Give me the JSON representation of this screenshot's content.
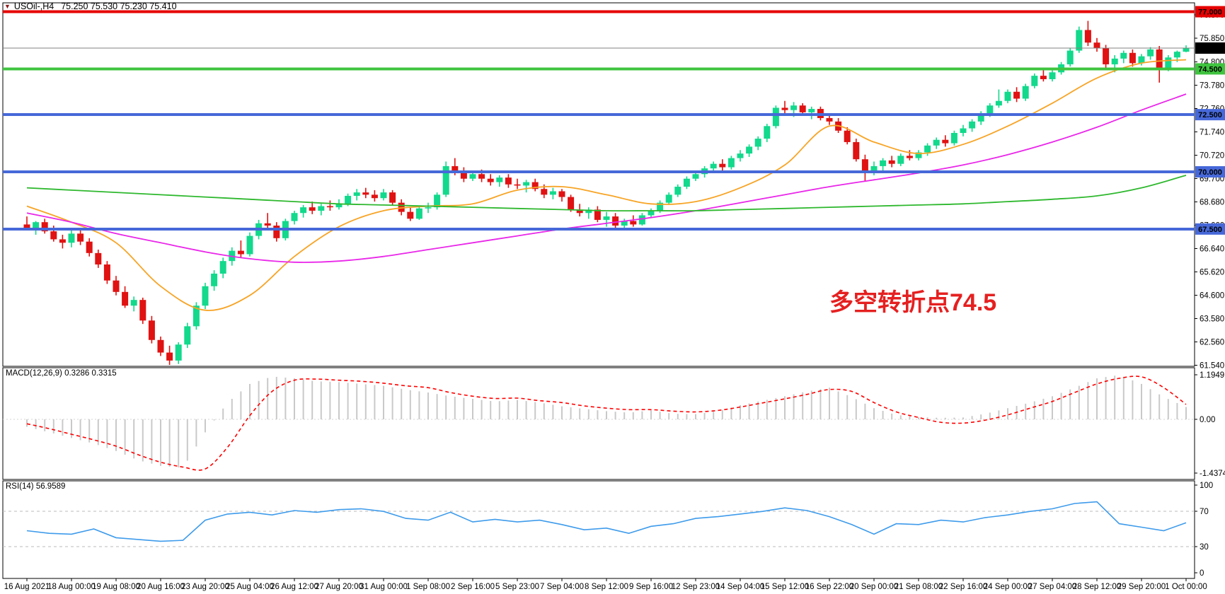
{
  "header": {
    "symbol_period": "USOil-,H4",
    "ohlc_text": "75.250 75.530 75.230 75.410",
    "dropdown_icon": "▼"
  },
  "indicators": {
    "macd_label": "MACD(12,26,9) 0.3286 0.3315",
    "rsi_label": "RSI(14) 56.9589"
  },
  "annotation": {
    "text": "多空转折点74.5",
    "color": "#e52020"
  },
  "colors": {
    "background": "#ffffff",
    "pane_border": "#000000",
    "bull": "#12d98c",
    "bear": "#e01212",
    "ma_orange": "#f7a425",
    "ma_magenta": "#e927e9",
    "ma_green": "#2eb82e",
    "hline_red": "#e60000",
    "hline_green": "#3fc43f",
    "hline_blue": "#4668d9",
    "current_price_line": "#808080",
    "current_price_badge": "#000000",
    "macd_bar": "#c9c9c9",
    "macd_signal": "#ff0000",
    "rsi_line": "#3e9beb",
    "rsi_level_dash": "#bbbbbb",
    "badge_text": "#ffffff"
  },
  "price_axis": {
    "ticks": [
      "76.870",
      "75.850",
      "74.800",
      "73.780",
      "72.760",
      "71.740",
      "70.720",
      "69.700",
      "68.680",
      "67.660",
      "66.640",
      "65.620",
      "64.600",
      "63.580",
      "62.560",
      "61.540"
    ],
    "current_price_label": "75.410"
  },
  "macd_axis": {
    "ticks": [
      "1.1949",
      "0.00",
      "-1.4374"
    ]
  },
  "rsi_axis": {
    "ticks": [
      "100",
      "70",
      "30",
      "0"
    ]
  },
  "chart_data": {
    "type": "candlestick+indicators",
    "symbol": "USOil",
    "timeframe": "H4",
    "title": "USOil-,H4 75.250 75.530 75.230 75.410",
    "last_bar": {
      "open": 75.25,
      "high": 75.53,
      "low": 75.23,
      "close": 75.41
    },
    "time_labels": [
      "16 Aug 2021",
      "18 Aug 00:00",
      "19 Aug 08:00",
      "20 Aug 16:00",
      "23 Aug 20:00",
      "25 Aug 04:00",
      "26 Aug 12:00",
      "27 Aug 20:00",
      "31 Aug 00:00",
      "1 Sep 08:00",
      "2 Sep 16:00",
      "5 Sep 23:00",
      "7 Sep 04:00",
      "8 Sep 12:00",
      "9 Sep 16:00",
      "12 Sep 23:00",
      "14 Sep 04:00",
      "15 Sep 12:00",
      "16 Sep 22:00",
      "20 Sep 00:00",
      "21 Sep 08:00",
      "22 Sep 16:00",
      "24 Sep 00:00",
      "27 Sep 04:00",
      "28 Sep 12:00",
      "29 Sep 20:00",
      "1 Oct 00:00"
    ],
    "candles_ohlc": [
      [
        67.7,
        68.05,
        67.45,
        67.55
      ],
      [
        67.55,
        67.85,
        67.25,
        67.8
      ],
      [
        67.8,
        67.95,
        67.3,
        67.4
      ],
      [
        67.4,
        67.65,
        66.95,
        67.05
      ],
      [
        67.05,
        67.25,
        66.65,
        66.9
      ],
      [
        66.9,
        67.45,
        66.7,
        67.3
      ],
      [
        67.3,
        67.5,
        66.8,
        66.95
      ],
      [
        66.95,
        67.1,
        66.3,
        66.45
      ],
      [
        66.45,
        66.6,
        65.8,
        65.95
      ],
      [
        65.95,
        66.1,
        65.1,
        65.25
      ],
      [
        65.25,
        65.45,
        64.6,
        64.75
      ],
      [
        64.75,
        65.0,
        64.05,
        64.15
      ],
      [
        64.15,
        64.55,
        63.9,
        64.4
      ],
      [
        64.4,
        64.5,
        63.35,
        63.5
      ],
      [
        63.5,
        63.7,
        62.5,
        62.65
      ],
      [
        62.65,
        62.8,
        61.95,
        62.1
      ],
      [
        62.1,
        62.4,
        61.56,
        61.75
      ],
      [
        61.75,
        62.55,
        61.6,
        62.45
      ],
      [
        62.45,
        63.4,
        62.3,
        63.25
      ],
      [
        63.25,
        64.3,
        63.1,
        64.15
      ],
      [
        64.15,
        65.15,
        64.0,
        65.0
      ],
      [
        65.0,
        65.7,
        64.8,
        65.55
      ],
      [
        65.55,
        66.25,
        65.35,
        66.1
      ],
      [
        66.1,
        66.7,
        65.9,
        66.55
      ],
      [
        66.55,
        67.0,
        66.25,
        66.4
      ],
      [
        66.4,
        67.35,
        66.3,
        67.2
      ],
      [
        67.2,
        67.9,
        67.05,
        67.75
      ],
      [
        67.75,
        68.2,
        67.5,
        67.65
      ],
      [
        67.65,
        67.8,
        66.95,
        67.1
      ],
      [
        67.1,
        67.95,
        67.0,
        67.85
      ],
      [
        67.85,
        68.3,
        67.7,
        68.2
      ],
      [
        68.2,
        68.55,
        68.0,
        68.45
      ],
      [
        68.45,
        68.7,
        68.15,
        68.3
      ],
      [
        68.3,
        68.6,
        68.1,
        68.5
      ],
      [
        68.5,
        68.75,
        68.3,
        68.45
      ],
      [
        68.45,
        68.8,
        68.35,
        68.6
      ],
      [
        68.6,
        69.05,
        68.5,
        68.95
      ],
      [
        68.95,
        69.25,
        68.75,
        69.1
      ],
      [
        69.1,
        69.3,
        68.85,
        69.0
      ],
      [
        69.0,
        69.2,
        68.7,
        68.85
      ],
      [
        68.85,
        69.25,
        68.75,
        69.1
      ],
      [
        69.1,
        69.2,
        68.55,
        68.65
      ],
      [
        68.65,
        68.8,
        68.1,
        68.25
      ],
      [
        68.25,
        68.45,
        67.85,
        67.95
      ],
      [
        67.95,
        68.5,
        67.9,
        68.4
      ],
      [
        68.4,
        68.65,
        68.2,
        68.45
      ],
      [
        68.45,
        69.1,
        68.35,
        69.0
      ],
      [
        69.0,
        70.45,
        68.9,
        70.25
      ],
      [
        70.25,
        70.6,
        69.85,
        70.0
      ],
      [
        70.0,
        70.2,
        69.55,
        69.7
      ],
      [
        69.7,
        70.05,
        69.6,
        69.9
      ],
      [
        69.9,
        70.1,
        69.55,
        69.7
      ],
      [
        69.7,
        69.9,
        69.4,
        69.55
      ],
      [
        69.55,
        69.85,
        69.35,
        69.75
      ],
      [
        69.75,
        69.9,
        69.3,
        69.45
      ],
      [
        69.45,
        69.7,
        69.25,
        69.4
      ],
      [
        69.4,
        69.65,
        69.1,
        69.55
      ],
      [
        69.55,
        69.7,
        69.15,
        69.25
      ],
      [
        69.25,
        69.45,
        68.85,
        69.0
      ],
      [
        69.0,
        69.3,
        68.8,
        69.15
      ],
      [
        69.15,
        69.25,
        68.7,
        68.9
      ],
      [
        68.9,
        69.0,
        68.25,
        68.35
      ],
      [
        68.35,
        68.6,
        68.05,
        68.2
      ],
      [
        68.2,
        68.45,
        67.95,
        68.35
      ],
      [
        68.35,
        68.5,
        67.8,
        67.9
      ],
      [
        67.9,
        68.25,
        67.6,
        68.05
      ],
      [
        68.05,
        68.2,
        67.55,
        67.65
      ],
      [
        67.65,
        67.95,
        67.5,
        67.85
      ],
      [
        67.85,
        68.1,
        67.6,
        67.7
      ],
      [
        67.7,
        68.2,
        67.65,
        68.1
      ],
      [
        68.1,
        68.4,
        68.0,
        68.3
      ],
      [
        68.3,
        68.75,
        68.2,
        68.65
      ],
      [
        68.65,
        69.1,
        68.55,
        69.0
      ],
      [
        69.0,
        69.45,
        68.9,
        69.35
      ],
      [
        69.35,
        69.8,
        69.25,
        69.7
      ],
      [
        69.7,
        70.05,
        69.6,
        69.9
      ],
      [
        69.9,
        70.25,
        69.75,
        70.15
      ],
      [
        70.15,
        70.45,
        69.95,
        70.35
      ],
      [
        70.35,
        70.55,
        70.05,
        70.2
      ],
      [
        70.2,
        70.7,
        70.1,
        70.6
      ],
      [
        70.6,
        70.95,
        70.45,
        70.8
      ],
      [
        70.8,
        71.2,
        70.65,
        71.1
      ],
      [
        71.1,
        71.55,
        70.95,
        71.45
      ],
      [
        71.45,
        72.1,
        71.3,
        72.0
      ],
      [
        72.0,
        72.9,
        71.9,
        72.8
      ],
      [
        72.8,
        73.1,
        72.45,
        72.7
      ],
      [
        72.7,
        73.05,
        72.4,
        72.9
      ],
      [
        72.9,
        73.0,
        72.5,
        72.6
      ],
      [
        72.6,
        72.85,
        72.3,
        72.75
      ],
      [
        72.75,
        72.85,
        72.25,
        72.35
      ],
      [
        72.35,
        72.55,
        72.05,
        72.2
      ],
      [
        72.2,
        72.35,
        71.7,
        71.8
      ],
      [
        71.8,
        71.95,
        71.2,
        71.3
      ],
      [
        71.3,
        71.45,
        70.45,
        70.55
      ],
      [
        70.55,
        70.75,
        69.6,
        70.05
      ],
      [
        70.05,
        70.45,
        69.85,
        70.25
      ],
      [
        70.25,
        70.6,
        70.05,
        70.5
      ],
      [
        70.5,
        70.7,
        70.2,
        70.35
      ],
      [
        70.35,
        70.8,
        70.25,
        70.7
      ],
      [
        70.7,
        70.95,
        70.5,
        70.6
      ],
      [
        70.6,
        70.95,
        70.5,
        70.85
      ],
      [
        70.85,
        71.25,
        70.7,
        71.15
      ],
      [
        71.15,
        71.5,
        71.0,
        71.4
      ],
      [
        71.4,
        71.6,
        71.1,
        71.25
      ],
      [
        71.25,
        71.8,
        71.15,
        71.7
      ],
      [
        71.7,
        72.05,
        71.55,
        71.9
      ],
      [
        71.9,
        72.3,
        71.75,
        72.2
      ],
      [
        72.2,
        72.65,
        72.05,
        72.55
      ],
      [
        72.55,
        73.0,
        72.4,
        72.9
      ],
      [
        72.9,
        73.6,
        72.8,
        73.1
      ],
      [
        73.1,
        73.6,
        73.0,
        73.5
      ],
      [
        73.5,
        73.7,
        73.05,
        73.2
      ],
      [
        73.2,
        73.85,
        73.1,
        73.75
      ],
      [
        73.75,
        74.3,
        73.65,
        74.2
      ],
      [
        74.2,
        74.55,
        73.95,
        74.05
      ],
      [
        74.05,
        74.5,
        73.95,
        74.35
      ],
      [
        74.35,
        74.8,
        74.25,
        74.7
      ],
      [
        74.7,
        75.4,
        74.6,
        75.3
      ],
      [
        75.3,
        76.35,
        75.2,
        76.2
      ],
      [
        76.2,
        76.6,
        75.5,
        75.65
      ],
      [
        75.65,
        75.85,
        75.25,
        75.4
      ],
      [
        75.4,
        75.55,
        74.55,
        74.7
      ],
      [
        74.7,
        75.1,
        74.35,
        74.95
      ],
      [
        74.95,
        75.3,
        74.75,
        75.2
      ],
      [
        75.2,
        75.35,
        74.6,
        74.75
      ],
      [
        74.75,
        75.15,
        74.65,
        75.05
      ],
      [
        75.05,
        75.45,
        74.9,
        75.35
      ],
      [
        75.35,
        75.5,
        73.9,
        74.5
      ],
      [
        74.5,
        75.1,
        74.4,
        75.0
      ],
      [
        75.0,
        75.3,
        74.8,
        75.25
      ],
      [
        75.25,
        75.53,
        75.23,
        75.41
      ]
    ],
    "overlays": {
      "ma_fast_orange": [
        68.5,
        67.8,
        66.9,
        65.0,
        63.95,
        64.6,
        66.3,
        67.6,
        68.3,
        68.5,
        68.6,
        69.2,
        69.35,
        69.0,
        68.6,
        68.7,
        69.3,
        70.3,
        72.0,
        71.3,
        70.8,
        71.2,
        72.0,
        73.0,
        74.1,
        74.75,
        74.9
      ],
      "ma_mid_magenta": [
        68.2,
        67.8,
        67.3,
        66.9,
        66.5,
        66.2,
        66.05,
        66.1,
        66.3,
        66.6,
        66.9,
        67.2,
        67.5,
        67.75,
        68.0,
        68.3,
        68.65,
        69.0,
        69.35,
        69.65,
        69.95,
        70.3,
        70.75,
        71.3,
        71.95,
        72.7,
        73.4
      ],
      "ma_slow_green": [
        69.3,
        69.2,
        69.1,
        69.0,
        68.9,
        68.8,
        68.7,
        68.6,
        68.55,
        68.5,
        68.45,
        68.4,
        68.35,
        68.3,
        68.3,
        68.3,
        68.35,
        68.4,
        68.45,
        68.5,
        68.55,
        68.6,
        68.7,
        68.8,
        68.95,
        69.3,
        69.85
      ]
    },
    "hlines": [
      {
        "price": 77.0,
        "label": "77.000",
        "color": "#e60000"
      },
      {
        "price": 74.5,
        "label": "74.500",
        "color": "#3fc43f"
      },
      {
        "price": 72.5,
        "label": "72.500",
        "color": "#4668d9"
      },
      {
        "price": 70.0,
        "label": "70.000",
        "color": "#4668d9"
      },
      {
        "price": 67.5,
        "label": "67.500",
        "color": "#4668d9"
      }
    ],
    "current_price": 75.41,
    "macd": {
      "params": "12,26,9",
      "value": 0.3286,
      "signal_value": 0.3315,
      "scale_max": 1.1949,
      "scale_min": -1.4374,
      "hist": [
        -0.2,
        -0.35,
        -0.5,
        -0.65,
        -0.85,
        -1.1,
        -1.25,
        -1.3,
        -0.35,
        0.45,
        0.95,
        1.15,
        1.1,
        1.02,
        1.0,
        0.95,
        0.9,
        0.8,
        0.72,
        0.62,
        0.55,
        0.48,
        0.52,
        0.45,
        0.35,
        0.28,
        0.22,
        0.18,
        0.24,
        0.15,
        0.14,
        0.22,
        0.38,
        0.5,
        0.62,
        0.75,
        0.85,
        0.6,
        0.3,
        0.12,
        0.06,
        0.04,
        0.05,
        0.15,
        0.3,
        0.45,
        0.62,
        0.85,
        1.1,
        1.19,
        0.95,
        0.6,
        0.33
      ],
      "signal": [
        -0.12,
        -0.25,
        -0.4,
        -0.55,
        -0.72,
        -0.95,
        -1.15,
        -1.28,
        -1.33,
        -0.75,
        0.1,
        0.75,
        1.05,
        1.08,
        1.05,
        1.02,
        0.97,
        0.9,
        0.85,
        0.72,
        0.62,
        0.56,
        0.57,
        0.5,
        0.45,
        0.36,
        0.3,
        0.26,
        0.26,
        0.22,
        0.2,
        0.24,
        0.33,
        0.44,
        0.55,
        0.67,
        0.8,
        0.75,
        0.45,
        0.2,
        0.05,
        -0.08,
        -0.1,
        -0.02,
        0.12,
        0.3,
        0.48,
        0.72,
        0.95,
        1.1,
        1.14,
        0.85,
        0.4
      ]
    },
    "rsi": {
      "period": 14,
      "current": 56.9589,
      "levels": [
        70,
        30
      ],
      "range": [
        0,
        100
      ],
      "values": [
        48,
        45,
        44,
        50,
        40,
        38,
        36,
        37,
        60,
        67,
        69,
        66,
        71,
        69,
        72,
        73,
        70,
        62,
        60,
        69,
        58,
        61,
        58,
        60,
        55,
        49,
        51,
        45,
        53,
        56,
        62,
        64,
        67,
        70,
        74,
        71,
        64,
        55,
        44,
        56,
        55,
        60,
        58,
        63,
        66,
        70,
        73,
        79,
        81,
        56,
        52,
        48,
        57
      ]
    }
  }
}
